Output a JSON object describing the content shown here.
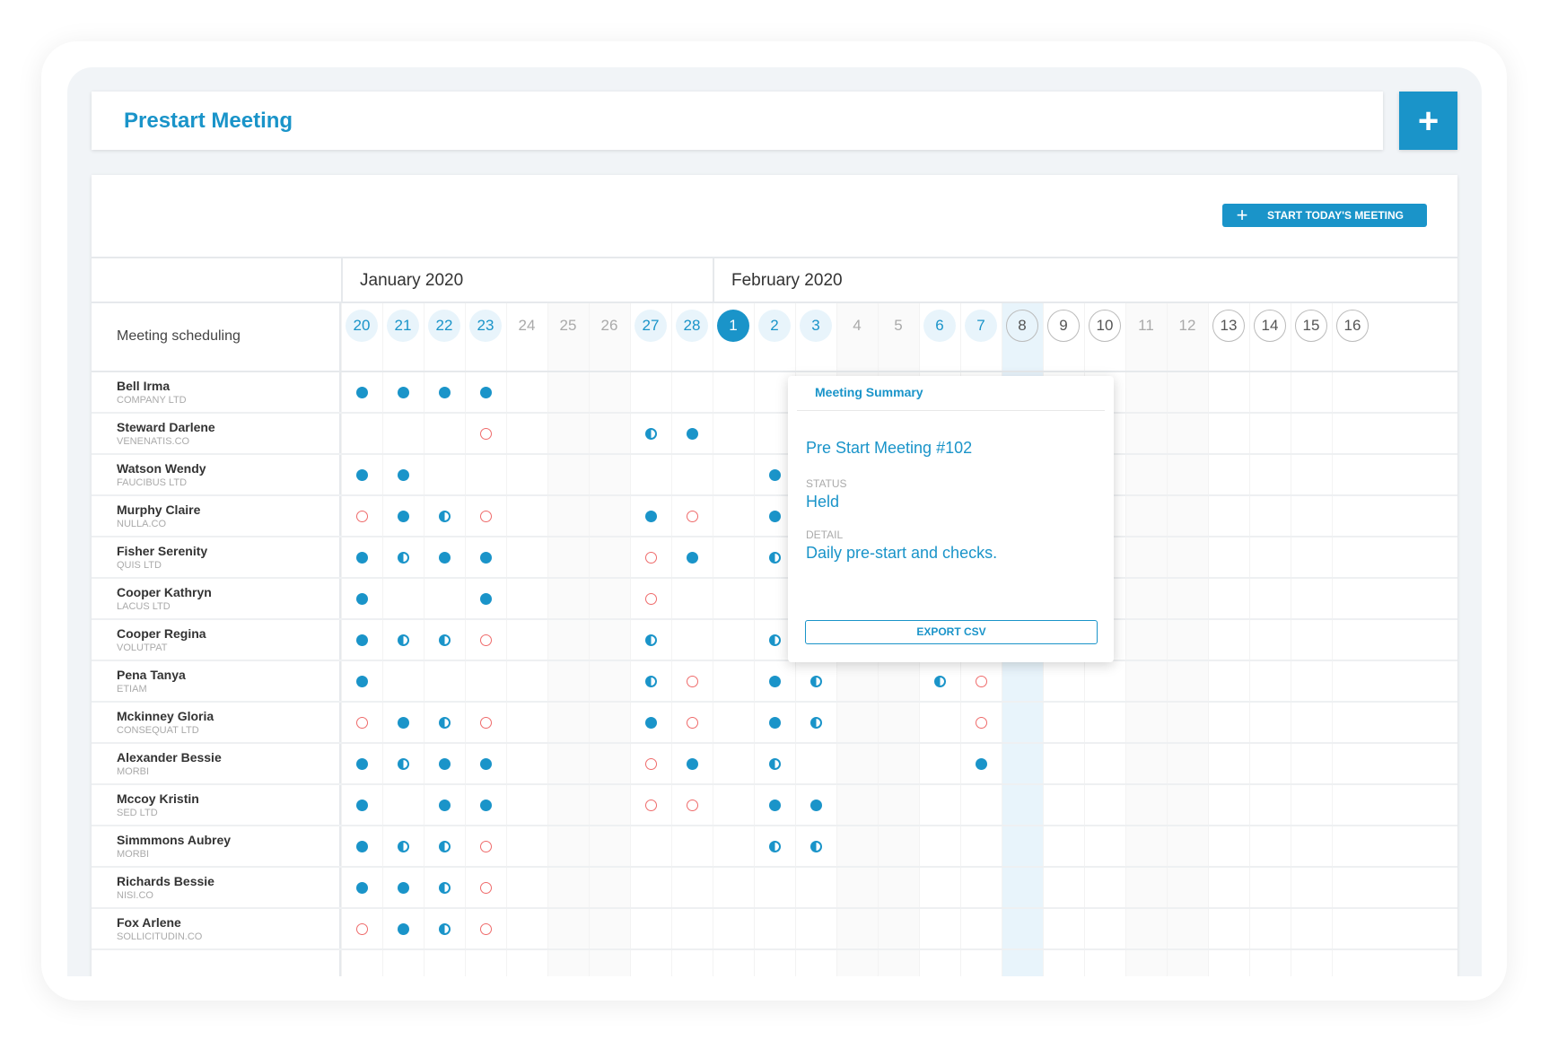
{
  "header": {
    "title": "Prestart Meeting",
    "add_icon": "plus-icon"
  },
  "toolbar": {
    "start_label": "START TODAY'S MEETING",
    "start_icon": "plus-icon"
  },
  "grid": {
    "row_header": "Meeting scheduling",
    "months": [
      {
        "label": "January 2020",
        "start_col": 0
      },
      {
        "label": "February 2020",
        "start_col": 9
      }
    ],
    "days": [
      {
        "d": "20",
        "s": "held"
      },
      {
        "d": "21",
        "s": "held"
      },
      {
        "d": "22",
        "s": "held"
      },
      {
        "d": "23",
        "s": "held"
      },
      {
        "d": "24",
        "s": "off"
      },
      {
        "d": "25",
        "s": "off",
        "we": true
      },
      {
        "d": "26",
        "s": "off",
        "we": true
      },
      {
        "d": "27",
        "s": "held"
      },
      {
        "d": "28",
        "s": "held"
      },
      {
        "d": "1",
        "s": "today"
      },
      {
        "d": "2",
        "s": "held"
      },
      {
        "d": "3",
        "s": "held"
      },
      {
        "d": "4",
        "s": "off",
        "we": true
      },
      {
        "d": "5",
        "s": "off",
        "we": true
      },
      {
        "d": "6",
        "s": "held"
      },
      {
        "d": "7",
        "s": "held"
      },
      {
        "d": "8",
        "s": "upcoming",
        "hl": true
      },
      {
        "d": "9",
        "s": "upcoming"
      },
      {
        "d": "10",
        "s": "upcoming"
      },
      {
        "d": "11",
        "s": "off",
        "we": true
      },
      {
        "d": "12",
        "s": "off",
        "we": true
      },
      {
        "d": "13",
        "s": "upcoming"
      },
      {
        "d": "14",
        "s": "upcoming"
      },
      {
        "d": "15",
        "s": "upcoming"
      },
      {
        "d": "16",
        "s": "upcoming"
      }
    ],
    "marker_colors": {
      "held": "#1a94c9",
      "missed": "#ef6b6b",
      "highlight": "#e8f4fb"
    },
    "people": [
      {
        "name": "Bell Irma",
        "company": "COMPANY LTD",
        "marks": "FFFF....................."
      },
      {
        "name": "Steward Darlene",
        "company": "VENENATIS.CO",
        "marks": "...E...HF................"
      },
      {
        "name": "Watson Wendy",
        "company": "FAUCIBUS LTD",
        "marks": "FF........FF..FE........."
      },
      {
        "name": "Murphy Claire",
        "company": "NULLA.CO",
        "marks": "EFHE...FE.FH..FE........."
      },
      {
        "name": "Fisher Serenity",
        "company": "QUIS LTD",
        "marks": "FHFF...EF.HF...F........."
      },
      {
        "name": "Cooper Kathryn",
        "company": "LACUS LTD",
        "marks": "F..F...E...F..EE........."
      },
      {
        "name": "Cooper Regina",
        "company": "VOLUTPAT",
        "marks": "FHHE...H..HH..HF........."
      },
      {
        "name": "Pena Tanya",
        "company": "ETIAM",
        "marks": "F......HE.FH..HE........."
      },
      {
        "name": "Mckinney Gloria",
        "company": "CONSEQUAT LTD",
        "marks": "EFHE...FE.FH...E........."
      },
      {
        "name": "Alexander Bessie",
        "company": "MORBI",
        "marks": "FHFF...EF.H....F........."
      },
      {
        "name": "Mccoy Kristin",
        "company": "SED LTD",
        "marks": "F.FF...EE.FF............."
      },
      {
        "name": "Simmmons Aubrey",
        "company": "MORBI",
        "marks": "FHHE......HH............."
      },
      {
        "name": "Richards Bessie",
        "company": "NISI.CO",
        "marks": "FFHE....................."
      },
      {
        "name": "Fox Arlene",
        "company": "SOLLICITUDIN.CO",
        "marks": "EFHE....................."
      }
    ]
  },
  "popup": {
    "heading": "Meeting Summary",
    "meeting_title": "Pre Start Meeting #102",
    "status_label": "STATUS",
    "status": "Held",
    "detail_label": "DETAIL",
    "detail": "Daily pre-start and checks.",
    "export_label": "EXPORT CSV"
  }
}
